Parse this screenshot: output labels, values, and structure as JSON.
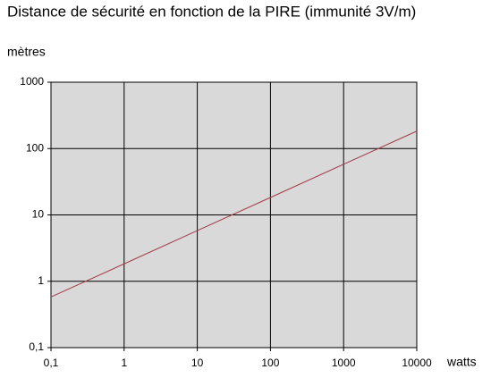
{
  "chart_data": {
    "type": "line",
    "title": "Distance de sécurité en fonction de la PIRE (immunité 3V/m)",
    "y_label": "mètres",
    "x_label": "watts",
    "x": [
      0.1,
      1,
      10,
      100,
      1000,
      10000
    ],
    "values": [
      0.58,
      1.83,
      5.8,
      18.3,
      58,
      183
    ],
    "color": "#a33a4c",
    "xscale": "log",
    "yscale": "log",
    "xlim": [
      0.1,
      10000
    ],
    "ylim": [
      0.1,
      1000
    ],
    "xticks": [
      {
        "value": 0.1,
        "label": "0,1"
      },
      1,
      10,
      100,
      1000,
      10000
    ],
    "yticks": [
      {
        "value": 0.1,
        "label": "0,1"
      },
      1,
      10,
      100,
      1000
    ],
    "grid": true,
    "background": "#d9d9d9"
  }
}
